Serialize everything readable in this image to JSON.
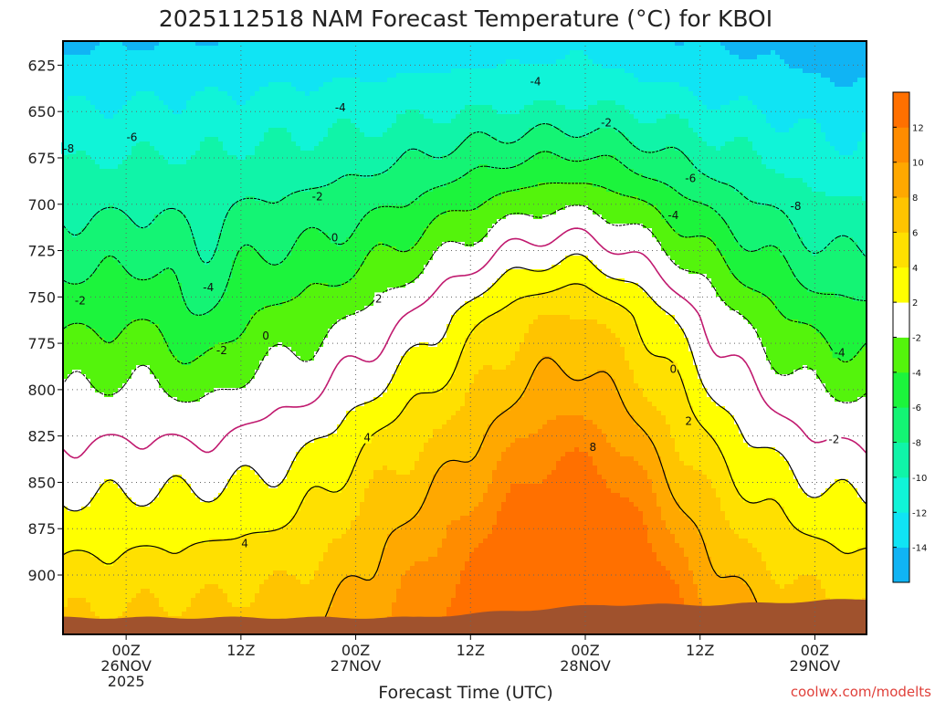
{
  "chart_data": {
    "type": "heatmap",
    "title": "2025112518 NAM Forecast Temperature (°C) for KBOI",
    "xlabel": "Forecast Time (UTC)",
    "ylabel": "",
    "credit": "coolwx.com/modelts",
    "y_ticks": [
      "625",
      "650",
      "675",
      "700",
      "725",
      "750",
      "775",
      "800",
      "825",
      "850",
      "875",
      "900"
    ],
    "y_values": [
      625,
      650,
      675,
      700,
      725,
      750,
      775,
      800,
      825,
      850,
      875,
      900
    ],
    "ylim": [
      612,
      932
    ],
    "xlim_hours": [
      -6.6,
      77.4
    ],
    "x_ticks": [
      {
        "hour": 0,
        "line1": "00Z",
        "line2": "26NOV",
        "line3": "2025"
      },
      {
        "hour": 12,
        "line1": "12Z",
        "line2": "",
        "line3": ""
      },
      {
        "hour": 24,
        "line1": "00Z",
        "line2": "27NOV",
        "line3": ""
      },
      {
        "hour": 36,
        "line1": "12Z",
        "line2": "",
        "line3": ""
      },
      {
        "hour": 48,
        "line1": "00Z",
        "line2": "28NOV",
        "line3": ""
      },
      {
        "hour": 60,
        "line1": "12Z",
        "line2": "",
        "line3": ""
      },
      {
        "hour": 72,
        "line1": "00Z",
        "line2": "29NOV",
        "line3": ""
      }
    ],
    "contour_levels": [
      -8,
      -6,
      -4,
      -2,
      0,
      2,
      4,
      8
    ],
    "contour_labels": [
      {
        "text": "-8",
        "hour": -6.0,
        "p": 670
      },
      {
        "text": "-6",
        "hour": 0.6,
        "p": 664
      },
      {
        "text": "-4",
        "hour": 8.6,
        "p": 745
      },
      {
        "text": "-2",
        "hour": 10.0,
        "p": 779
      },
      {
        "text": "-2",
        "hour": -4.8,
        "p": 752
      },
      {
        "text": "-4",
        "hour": 22.4,
        "p": 648
      },
      {
        "text": "-2",
        "hour": 20.0,
        "p": 696
      },
      {
        "text": "0",
        "hour": 21.8,
        "p": 718
      },
      {
        "text": "0",
        "hour": 14.6,
        "p": 771
      },
      {
        "text": "2",
        "hour": 26.4,
        "p": 751
      },
      {
        "text": "4",
        "hour": 25.2,
        "p": 826
      },
      {
        "text": "4",
        "hour": 12.4,
        "p": 883
      },
      {
        "text": "-4",
        "hour": 42.8,
        "p": 634
      },
      {
        "text": "-2",
        "hour": 50.2,
        "p": 656
      },
      {
        "text": "8",
        "hour": 48.8,
        "p": 831
      },
      {
        "text": "-6",
        "hour": 59.0,
        "p": 686
      },
      {
        "text": "-4",
        "hour": 57.2,
        "p": 706
      },
      {
        "text": "-8",
        "hour": 70.0,
        "p": 701
      },
      {
        "text": "0",
        "hour": 57.2,
        "p": 789
      },
      {
        "text": "2",
        "hour": 58.8,
        "p": 817
      },
      {
        "text": "-4",
        "hour": 74.6,
        "p": 780
      },
      {
        "text": "-2",
        "hour": 74.0,
        "p": 827
      }
    ],
    "colorbar": {
      "boundaries": [
        -16,
        -14,
        -12,
        -10,
        -8,
        -6,
        -4,
        -2,
        2,
        4,
        6,
        8,
        10,
        12,
        14
      ],
      "tick_labels": [
        "-14",
        "-12",
        "-10",
        "-8",
        "-6",
        "-4",
        "-2",
        "2",
        "4",
        "6",
        "8",
        "10",
        "12"
      ],
      "colors": [
        "#10b4f4",
        "#10e4f4",
        "#10f4d8",
        "#10f4a8",
        "#14f474",
        "#1cf43c",
        "#54f40c",
        "#ffffff",
        "#ffff00",
        "#ffe000",
        "#ffc400",
        "#ffa800",
        "#ff8c00",
        "#ff7000"
      ],
      "cold_end_color": "#10d4f4",
      "ground_color": "#a0522d"
    }
  }
}
